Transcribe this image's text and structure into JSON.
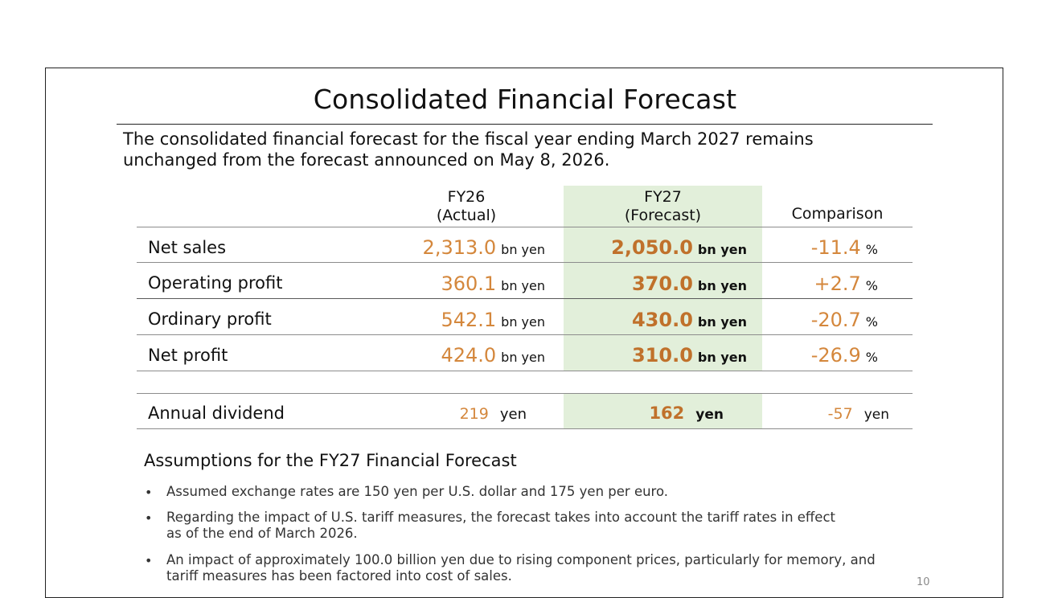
{
  "slide": {
    "title": "Consolidated Financial Forecast",
    "intro_line1": "The consolidated financial forecast for the fiscal year ending March 2027 remains",
    "intro_line2": "unchanged from the forecast announced on May 8, 2026.",
    "page_number": "10"
  },
  "table": {
    "headers": {
      "fy26_line1": "FY26",
      "fy26_line2": "(Actual)",
      "fy27_line1": "FY27",
      "fy27_line2": "(Forecast)",
      "comparison": "Comparison"
    },
    "rows": [
      {
        "label": "Net sales",
        "fy26": "2,313.0",
        "fy26_unit": "bn yen",
        "fy27": "2,050.0",
        "fy27_unit": "bn yen",
        "comparison": "-11.4",
        "comparison_unit": "%"
      },
      {
        "label": "Operating profit",
        "fy26": "360.1",
        "fy26_unit": "bn yen",
        "fy27": "370.0",
        "fy27_unit": "bn yen",
        "comparison": "+2.7",
        "comparison_unit": "%"
      },
      {
        "label": "Ordinary profit",
        "fy26": "542.1",
        "fy26_unit": "bn yen",
        "fy27": "430.0",
        "fy27_unit": "bn yen",
        "comparison": "-20.7",
        "comparison_unit": "%"
      },
      {
        "label": "Net profit",
        "fy26": "424.0",
        "fy26_unit": "bn yen",
        "fy27": "310.0",
        "fy27_unit": "bn yen",
        "comparison": "-26.9",
        "comparison_unit": "%"
      }
    ],
    "dividend": {
      "label": "Annual dividend",
      "fy26": "219",
      "fy26_unit": "yen",
      "fy27": "162",
      "fy27_unit": "yen",
      "comparison": "-57",
      "comparison_unit": "yen"
    }
  },
  "assumptions": {
    "title": "Assumptions for the FY27 Financial Forecast",
    "bullet_symbol": "•",
    "items": [
      {
        "line1": "Assumed exchange rates are 150 yen per U.S. dollar and 175 yen per euro.",
        "line2": ""
      },
      {
        "line1": "Regarding the impact of U.S. tariff measures, the forecast takes into account the tariff rates in effect",
        "line2": "as of the end of March 2026."
      },
      {
        "line1": "An impact of approximately 100.0 billion yen due to rising component prices, particularly for memory, and",
        "line2": "tariff measures has been factored into cost of sales."
      }
    ]
  },
  "colors": {
    "forecast_band": "#e2efda",
    "value_orange": "#d4873c",
    "value_orange_bold": "#c0712b"
  }
}
